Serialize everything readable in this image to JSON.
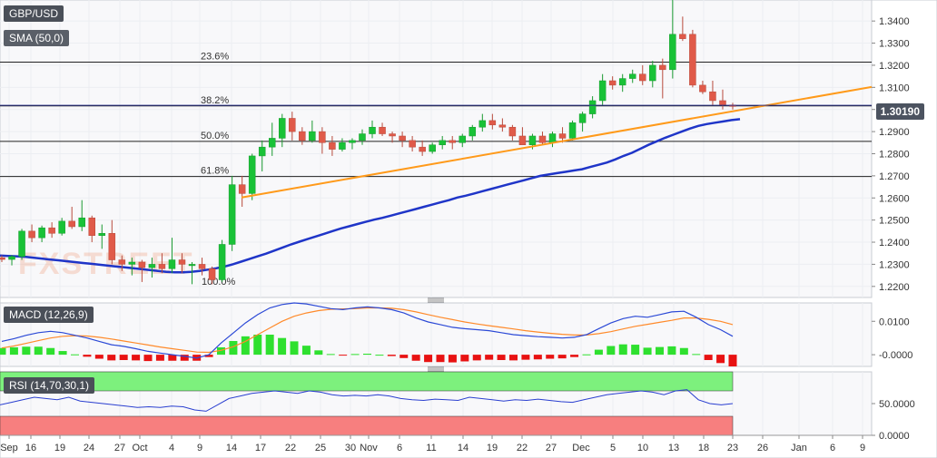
{
  "colors": {
    "bull": "#19c237",
    "bear": "#e05a49",
    "sma": "#1f35c8",
    "trendline": "#ff9a1a",
    "macd_line": "#2b49d6",
    "signal_line": "#ff8a2a",
    "hist_pos": "#2fe02f",
    "hist_neg": "#e81212",
    "rsi_line": "#2a3fd0",
    "rsi_overbought_zone": "#7df07d",
    "rsi_oversold_zone": "#f77f7f"
  },
  "labels": {
    "symbol": "GBP/USD",
    "sma": "SMA (50,0)",
    "macd": "MACD (12,26,9)",
    "rsi": "RSI (14,70,30,1)",
    "watermark": "FXSTREET",
    "current_price": "1.30190"
  },
  "chart_data": [
    {
      "type": "candlestick",
      "title": "GBP/USD",
      "ylim": [
        1.215,
        1.3495
      ],
      "y_ticks": [
        "1.3400",
        "1.3300",
        "1.3200",
        "1.3100",
        "1.3000",
        "1.2900",
        "1.2800",
        "1.2700",
        "1.2600",
        "1.2500",
        "1.2400",
        "1.2300",
        "1.2200"
      ],
      "x_ticks": [
        "Sep",
        "16",
        "19",
        "24",
        "27",
        "Oct",
        "4",
        "9",
        "14",
        "17",
        "22",
        "25",
        "30",
        "Nov",
        "6",
        "11",
        "14",
        "19",
        "22",
        "27",
        "Dec",
        "5",
        "10",
        "13",
        "18",
        "23",
        "26",
        "Jan",
        "6",
        "9"
      ],
      "current_price": 1.3019,
      "fibonacci": [
        {
          "label": "23.6%",
          "value": 1.3214
        },
        {
          "label": "38.2%",
          "value": 1.3016
        },
        {
          "label": "50.0%",
          "value": 1.2856
        },
        {
          "label": "61.8%",
          "value": 1.2697
        },
        {
          "label": "100.0%",
          "value": 1.2196
        }
      ],
      "trendline": {
        "from": {
          "bar": 38,
          "value": 1.2602
        },
        "to": {
          "bar": 133,
          "value": 1.3102
        }
      },
      "sma_50": [
        1.234,
        1.2338,
        1.2336,
        1.2334,
        1.233,
        1.2326,
        1.2322,
        1.2318,
        1.2314,
        1.231,
        1.2306,
        1.2302,
        1.2298,
        1.2294,
        1.229,
        1.2286,
        1.2282,
        1.2278,
        1.2274,
        1.227,
        1.2266,
        1.2264,
        1.2264,
        1.2266,
        1.227,
        1.2276,
        1.2282,
        1.229,
        1.23,
        1.2312,
        1.2324,
        1.2336,
        1.2348,
        1.2362,
        1.2376,
        1.239,
        1.2402,
        1.2414,
        1.2426,
        1.2438,
        1.245,
        1.2462,
        1.2472,
        1.2482,
        1.2492,
        1.2502,
        1.251,
        1.252,
        1.253,
        1.254,
        1.255,
        1.256,
        1.257,
        1.258,
        1.259,
        1.2602,
        1.261,
        1.262,
        1.263,
        1.264,
        1.265,
        1.266,
        1.267,
        1.268,
        1.269,
        1.27,
        1.2706,
        1.2712,
        1.2718,
        1.2724,
        1.273,
        1.274,
        1.275,
        1.276,
        1.2774,
        1.279,
        1.2804,
        1.2822,
        1.284,
        1.2856,
        1.2872,
        1.2886,
        1.29,
        1.2914,
        1.2926,
        1.2934,
        1.294,
        1.2946,
        1.2952,
        1.2956
      ],
      "candles": [
        [
          1.233,
          1.234,
          1.231,
          1.2322
        ],
        [
          1.2322,
          1.2342,
          1.2295,
          1.2335
        ],
        [
          1.2335,
          1.246,
          1.232,
          1.245
        ],
        [
          1.245,
          1.248,
          1.24,
          1.242
        ],
        [
          1.242,
          1.2475,
          1.24,
          1.2465
        ],
        [
          1.2465,
          1.249,
          1.242,
          1.244
        ],
        [
          1.244,
          1.251,
          1.243,
          1.2495
        ],
        [
          1.2495,
          1.256,
          1.246,
          1.247
        ],
        [
          1.247,
          1.259,
          1.245,
          1.251
        ],
        [
          1.251,
          1.252,
          1.24,
          1.243
        ],
        [
          1.243,
          1.248,
          1.237,
          1.244
        ],
        [
          1.244,
          1.25,
          1.23,
          1.232
        ],
        [
          1.232,
          1.234,
          1.227,
          1.23
        ],
        [
          1.23,
          1.233,
          1.225,
          1.231
        ],
        [
          1.231,
          1.232,
          1.222,
          1.2285
        ],
        [
          1.2285,
          1.233,
          1.224,
          1.23
        ],
        [
          1.23,
          1.235,
          1.226,
          1.228
        ],
        [
          1.228,
          1.242,
          1.226,
          1.232
        ],
        [
          1.232,
          1.235,
          1.226,
          1.23
        ],
        [
          1.23,
          1.231,
          1.221,
          1.23
        ],
        [
          1.23,
          1.233,
          1.225,
          1.228
        ],
        [
          1.228,
          1.229,
          1.221,
          1.223
        ],
        [
          1.223,
          1.241,
          1.222,
          1.239
        ],
        [
          1.239,
          1.27,
          1.236,
          1.266
        ],
        [
          1.266,
          1.27,
          1.256,
          1.262
        ],
        [
          1.262,
          1.28,
          1.259,
          1.279
        ],
        [
          1.279,
          1.286,
          1.272,
          1.283
        ],
        [
          1.283,
          1.294,
          1.279,
          1.287
        ],
        [
          1.287,
          1.298,
          1.283,
          1.296
        ],
        [
          1.296,
          1.299,
          1.286,
          1.29
        ],
        [
          1.29,
          1.292,
          1.284,
          1.286
        ],
        [
          1.286,
          1.295,
          1.285,
          1.29
        ],
        [
          1.29,
          1.292,
          1.28,
          1.285
        ],
        [
          1.285,
          1.288,
          1.279,
          1.282
        ],
        [
          1.282,
          1.287,
          1.281,
          1.285
        ],
        [
          1.285,
          1.287,
          1.282,
          1.286
        ],
        [
          1.286,
          1.291,
          1.284,
          1.289
        ],
        [
          1.289,
          1.295,
          1.287,
          1.292
        ],
        [
          1.292,
          1.294,
          1.288,
          1.289
        ],
        [
          1.289,
          1.29,
          1.285,
          1.288
        ],
        [
          1.288,
          1.29,
          1.283,
          1.286
        ],
        [
          1.286,
          1.288,
          1.281,
          1.283
        ],
        [
          1.283,
          1.286,
          1.279,
          1.281
        ],
        [
          1.281,
          1.285,
          1.28,
          1.284
        ],
        [
          1.284,
          1.288,
          1.282,
          1.286
        ],
        [
          1.286,
          1.288,
          1.282,
          1.285
        ],
        [
          1.285,
          1.289,
          1.283,
          1.288
        ],
        [
          1.288,
          1.293,
          1.286,
          1.292
        ],
        [
          1.292,
          1.298,
          1.29,
          1.295
        ],
        [
          1.295,
          1.298,
          1.291,
          1.293
        ],
        [
          1.293,
          1.296,
          1.29,
          1.292
        ],
        [
          1.292,
          1.293,
          1.286,
          1.288
        ],
        [
          1.288,
          1.292,
          1.285,
          1.284
        ],
        [
          1.284,
          1.289,
          1.282,
          1.288
        ],
        [
          1.288,
          1.29,
          1.284,
          1.285
        ],
        [
          1.285,
          1.29,
          1.283,
          1.289
        ],
        [
          1.289,
          1.292,
          1.285,
          1.287
        ],
        [
          1.287,
          1.295,
          1.286,
          1.294
        ],
        [
          1.294,
          1.299,
          1.29,
          1.298
        ],
        [
          1.298,
          1.306,
          1.296,
          1.304
        ],
        [
          1.304,
          1.316,
          1.302,
          1.313
        ],
        [
          1.313,
          1.315,
          1.309,
          1.311
        ],
        [
          1.311,
          1.316,
          1.308,
          1.314
        ],
        [
          1.314,
          1.318,
          1.312,
          1.316
        ],
        [
          1.316,
          1.32,
          1.311,
          1.313
        ],
        [
          1.313,
          1.322,
          1.31,
          1.32
        ],
        [
          1.32,
          1.323,
          1.305,
          1.318
        ],
        [
          1.318,
          1.351,
          1.314,
          1.334
        ],
        [
          1.334,
          1.342,
          1.331,
          1.332
        ],
        [
          1.334,
          1.336,
          1.31,
          1.311
        ],
        [
          1.311,
          1.313,
          1.307,
          1.308
        ],
        [
          1.308,
          1.313,
          1.302,
          1.304
        ],
        [
          1.304,
          1.309,
          1.3,
          1.302
        ],
        [
          1.302,
          1.303,
          1.3,
          1.3019
        ]
      ]
    },
    {
      "type": "line",
      "title": "MACD (12,26,9)",
      "ylim": [
        -0.0035,
        0.0155
      ],
      "y_ticks": [
        "0.0100",
        "-0.0000"
      ],
      "series": [
        {
          "name": "MACD",
          "values": [
            0.004,
            0.0048,
            0.0058,
            0.0066,
            0.007,
            0.0066,
            0.0058,
            0.005,
            0.004,
            0.003,
            0.0025,
            0.0018,
            0.001,
            0.0005,
            0.0,
            -0.0005,
            -0.001,
            0.0,
            0.0035,
            0.0065,
            0.0095,
            0.012,
            0.014,
            0.015,
            0.0155,
            0.0152,
            0.0145,
            0.0138,
            0.0135,
            0.014,
            0.0143,
            0.014,
            0.0135,
            0.0125,
            0.011,
            0.0098,
            0.009,
            0.0082,
            0.0078,
            0.0075,
            0.0072,
            0.0066,
            0.006,
            0.0057,
            0.0054,
            0.0052,
            0.005,
            0.0052,
            0.006,
            0.0078,
            0.0095,
            0.0108,
            0.0115,
            0.0112,
            0.012,
            0.0128,
            0.013,
            0.0112,
            0.009,
            0.0075,
            0.0055
          ]
        },
        {
          "name": "Signal",
          "values": [
            0.002,
            0.0026,
            0.0034,
            0.0042,
            0.005,
            0.0055,
            0.0057,
            0.0056,
            0.0052,
            0.0047,
            0.0041,
            0.0035,
            0.0029,
            0.0023,
            0.0018,
            0.0013,
            0.0008,
            0.0007,
            0.0013,
            0.0024,
            0.004,
            0.006,
            0.008,
            0.01,
            0.0115,
            0.0125,
            0.0132,
            0.0136,
            0.0137,
            0.0138,
            0.014,
            0.014,
            0.0139,
            0.0135,
            0.0128,
            0.012,
            0.0112,
            0.0105,
            0.0098,
            0.0092,
            0.0087,
            0.0082,
            0.0077,
            0.0072,
            0.0068,
            0.0064,
            0.0061,
            0.0059,
            0.0059,
            0.0063,
            0.0069,
            0.0077,
            0.0085,
            0.0091,
            0.0097,
            0.0103,
            0.011,
            0.011,
            0.0106,
            0.01,
            0.009
          ]
        },
        {
          "name": "Histogram",
          "values": [
            0.002,
            0.0022,
            0.0024,
            0.0024,
            0.002,
            0.0011,
            0.0001,
            -0.0006,
            -0.0012,
            -0.0017,
            -0.0016,
            -0.0017,
            -0.0019,
            -0.0018,
            -0.0018,
            -0.0018,
            -0.0018,
            -0.0007,
            0.0022,
            0.0041,
            0.0055,
            0.006,
            0.006,
            0.005,
            0.004,
            0.0027,
            0.0013,
            0.0002,
            -0.0002,
            0.0002,
            0.0003,
            0.0,
            -0.0004,
            -0.001,
            -0.0018,
            -0.0022,
            -0.0022,
            -0.0023,
            -0.002,
            -0.0017,
            -0.0015,
            -0.0016,
            -0.0017,
            -0.0015,
            -0.0014,
            -0.0012,
            -0.0011,
            -0.0007,
            0.0001,
            0.0015,
            0.0026,
            0.0031,
            0.003,
            0.0021,
            0.0023,
            0.0025,
            0.002,
            0.0002,
            -0.0016,
            -0.0025,
            -0.0035
          ]
        }
      ]
    },
    {
      "type": "line",
      "title": "RSI (14,70,30,1)",
      "ylim": [
        0,
        100
      ],
      "y_ticks": [
        "50.0000",
        "0.0000"
      ],
      "overbought": 70,
      "oversold": 30,
      "series": [
        {
          "name": "RSI",
          "values": [
            48,
            52,
            56,
            60,
            58,
            56,
            60,
            54,
            52,
            50,
            48,
            46,
            44,
            45,
            44,
            46,
            45,
            40,
            38,
            48,
            58,
            62,
            66,
            68,
            70,
            68,
            66,
            70,
            68,
            64,
            62,
            63,
            62,
            64,
            62,
            58,
            56,
            55,
            57,
            56,
            55,
            60,
            58,
            56,
            54,
            56,
            55,
            57,
            55,
            53,
            52,
            56,
            60,
            64,
            66,
            68,
            70,
            68,
            64,
            70,
            72,
            56,
            50,
            48,
            50
          ]
        }
      ]
    }
  ]
}
